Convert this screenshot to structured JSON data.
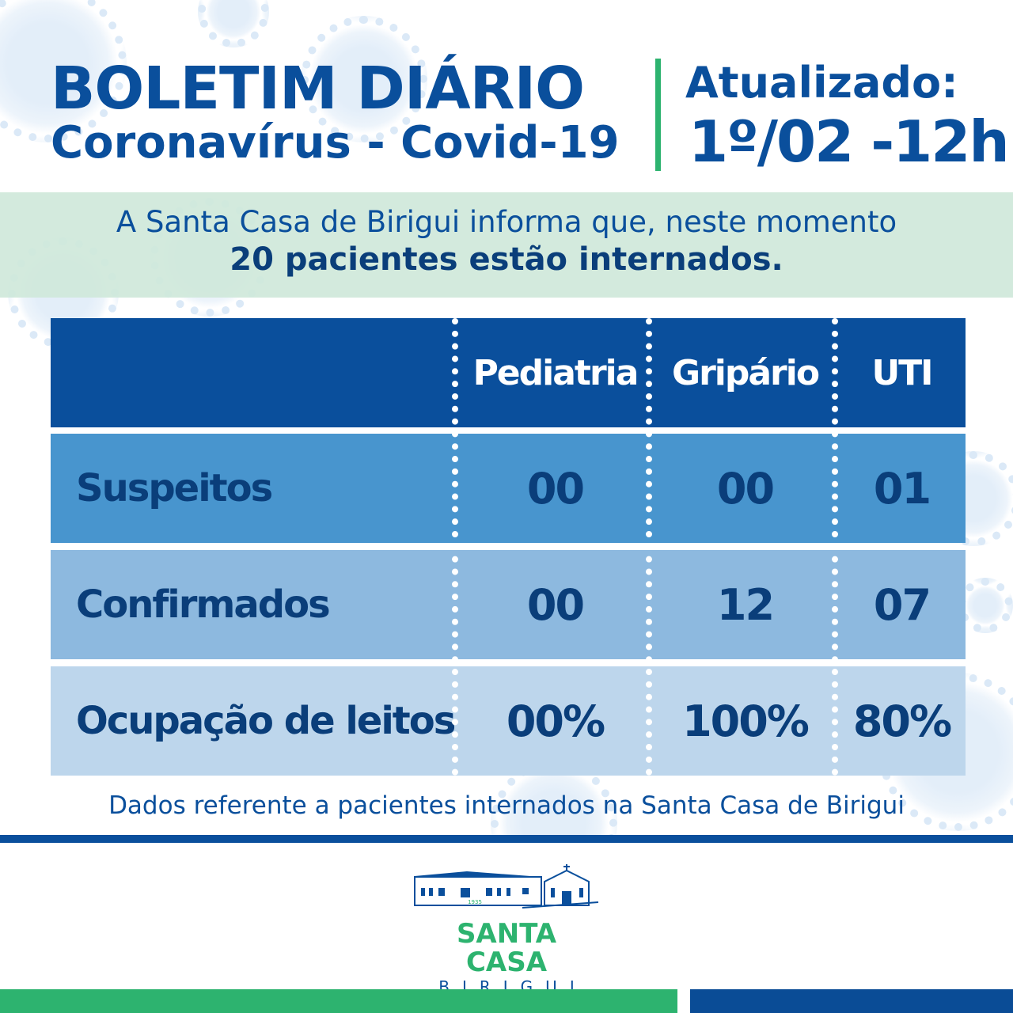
{
  "header": {
    "title": "BOLETIM DIÁRIO",
    "subtitle": "Coronavírus - Covid-19",
    "updated_label": "Atualizado:",
    "updated_value": "1º/02 -12h"
  },
  "notice": {
    "line1": "A Santa Casa de Birigui informa que, neste momento",
    "line2": "20 pacientes estão internados."
  },
  "table": {
    "columns": [
      "Pediatria",
      "Gripário",
      "UTI"
    ],
    "rows": [
      {
        "label": "Suspeitos",
        "values": [
          "00",
          "00",
          "01"
        ]
      },
      {
        "label": "Confirmados",
        "values": [
          "00",
          "12",
          "07"
        ]
      },
      {
        "label": "Ocupação de leitos",
        "values": [
          "00%",
          "100%",
          "80%"
        ]
      }
    ]
  },
  "footnote": "Dados referente a pacientes internados na Santa Casa de Birigui",
  "logo": {
    "name": "SANTA CASA",
    "city": "BIRIGUI",
    "year": "1935"
  },
  "colors": {
    "navy": "#0a4f9c",
    "green": "#2db36f",
    "row1": "#4895ce",
    "row2": "#8db9df",
    "row3": "#bdd6ec"
  }
}
